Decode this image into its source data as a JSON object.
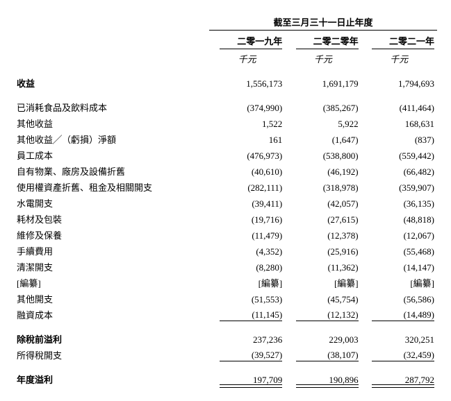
{
  "title_fontsize": 13,
  "text_color": "#000000",
  "background_color": "#ffffff",
  "border_color": "#000000",
  "header": {
    "period_title": "截至三月三十一日止年度",
    "years": [
      "二零一九年",
      "二零二零年",
      "二零二一年"
    ],
    "unit": "千元"
  },
  "rows": [
    {
      "label": "收益",
      "bold": true,
      "v": [
        "1,556,173",
        "1,691,179",
        "1,794,693"
      ],
      "spacer_after": true
    },
    {
      "label": "已消耗食品及飲料成本",
      "v": [
        "(374,990)",
        "(385,267)",
        "(411,464)"
      ]
    },
    {
      "label": "其他收益",
      "v": [
        "1,522",
        "5,922",
        "168,631"
      ]
    },
    {
      "label": "其他收益╱（虧損）淨額",
      "v": [
        "161",
        "(1,647)",
        "(837)"
      ]
    },
    {
      "label": "員工成本",
      "v": [
        "(476,973)",
        "(538,800)",
        "(559,442)"
      ]
    },
    {
      "label": "自有物業、廠房及設備折舊",
      "v": [
        "(40,610)",
        "(46,192)",
        "(66,482)"
      ]
    },
    {
      "label": "使用權資產折舊、租金及相關開支",
      "v": [
        "(282,111)",
        "(318,978)",
        "(359,907)"
      ]
    },
    {
      "label": "水電開支",
      "v": [
        "(39,411)",
        "(42,057)",
        "(36,135)"
      ]
    },
    {
      "label": "耗材及包裝",
      "v": [
        "(19,716)",
        "(27,615)",
        "(48,818)"
      ]
    },
    {
      "label": "維修及保養",
      "v": [
        "(11,479)",
        "(12,378)",
        "(12,067)"
      ]
    },
    {
      "label": "手續費用",
      "v": [
        "(4,352)",
        "(25,916)",
        "(55,468)"
      ]
    },
    {
      "label": "清潔開支",
      "v": [
        "(8,280)",
        "(11,362)",
        "(14,147)"
      ]
    },
    {
      "label": "[編纂]",
      "v": [
        "[編纂]",
        "[編纂]",
        "[編纂]"
      ]
    },
    {
      "label": "其他開支",
      "v": [
        "(51,553)",
        "(45,754)",
        "(56,586)"
      ]
    },
    {
      "label": "融資成本",
      "v": [
        "(11,145)",
        "(12,132)",
        "(14,489)"
      ],
      "underline": "single",
      "spacer_after": true
    },
    {
      "label": "除稅前溢利",
      "bold": true,
      "v": [
        "237,236",
        "229,003",
        "320,251"
      ]
    },
    {
      "label": "所得稅開支",
      "v": [
        "(39,527)",
        "(38,107)",
        "(32,459)"
      ],
      "underline": "single",
      "spacer_after": true
    },
    {
      "label": "年度溢利",
      "bold": true,
      "v": [
        "197,709",
        "190,896",
        "287,792"
      ],
      "underline": "double"
    }
  ]
}
